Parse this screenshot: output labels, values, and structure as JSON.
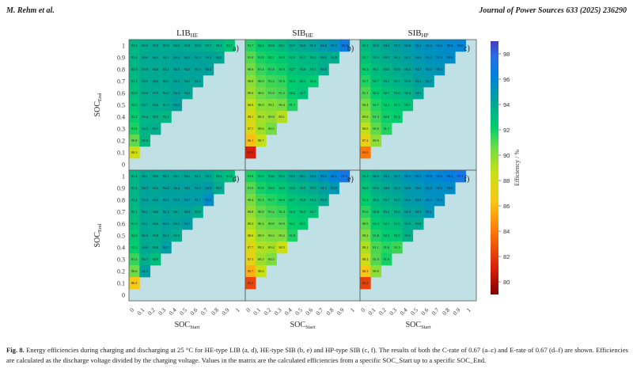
{
  "header": {
    "authors": "M. Rehm et al.",
    "journal": "Journal of Power Sources 633 (2025) 236290"
  },
  "chart_data": {
    "type": "heatmap",
    "xlabel": "SOC_Start",
    "ylabel": "SOC_End",
    "x_ticks": [
      "0",
      "0.1",
      "0.2",
      "0.3",
      "0.4",
      "0.5",
      "0.6",
      "0.7",
      "0.8",
      "0.9",
      "1"
    ],
    "y_ticks": [
      "1",
      "0.9",
      "0.8",
      "0.7",
      "0.6",
      "0.5",
      "0.4",
      "0.3",
      "0.2",
      "0.1",
      "0"
    ],
    "column_titles": [
      "LIB_HE",
      "SIB_HE",
      "SIB_HP"
    ],
    "colorbar": {
      "label": "Efficiency / %",
      "range": [
        79,
        99
      ],
      "ticks": [
        "98",
        "96",
        "94",
        "92",
        "90",
        "88",
        "86",
        "84",
        "82",
        "80"
      ]
    },
    "panels": [
      {
        "id": "a",
        "title": "LIB_HE",
        "label": "a)",
        "rows": [
          [
            "93.3",
            "93.8",
            "93.9",
            "93.9",
            "94.0",
            "93.9",
            "93.9",
            "93.7",
            "93.4",
            "92.7"
          ],
          [
            "93.4",
            "94.0",
            "94.1",
            "94.1",
            "94.3",
            "94.3",
            "94.3",
            "94.3",
            "94.2"
          ],
          [
            "93.3",
            "93.9",
            "94.0",
            "94.1",
            "94.3",
            "94.3",
            "94.3",
            "94.4"
          ],
          [
            "93.1",
            "93.9",
            "94.0",
            "94.0",
            "94.3",
            "94.2",
            "94.3"
          ],
          [
            "92.9",
            "93.8",
            "93.9",
            "94.0",
            "94.3",
            "94.2"
          ],
          [
            "92.6",
            "93.7",
            "93.8",
            "93.9",
            "94.4"
          ],
          [
            "92.2",
            "93.4",
            "93.5",
            "93.3"
          ],
          [
            "91.8",
            "93.5",
            "93.7"
          ],
          [
            "90.8",
            "93.3"
          ],
          [
            "88.3"
          ],
          []
        ]
      },
      {
        "id": "b",
        "title": "SIB_HE",
        "label": "b)",
        "rows": [
          [
            "91.7",
            "92.4",
            "92.8",
            "93.1",
            "93.7",
            "94.0",
            "94.3",
            "94.8",
            "95.3",
            "96.7"
          ],
          [
            "91.0",
            "91.8",
            "92.1",
            "92.4",
            "92.9",
            "93.2",
            "93.4",
            "93.8",
            "93.8"
          ],
          [
            "90.6",
            "91.4",
            "91.8",
            "92.0",
            "92.7",
            "93.0",
            "93.1",
            "93.8"
          ],
          [
            "90.0",
            "90.9",
            "91.3",
            "91.5",
            "92.3",
            "92.5",
            "92.3"
          ],
          [
            "89.6",
            "90.6",
            "91.0",
            "91.2",
            "92.2",
            "92.7"
          ],
          [
            "88.8",
            "90.0",
            "90.1",
            "90.4",
            "91.7"
          ],
          [
            "88.1",
            "89.4",
            "89.8",
            "89.1"
          ],
          [
            "87.7",
            "89.6",
            "90.5"
          ],
          [
            "86.1",
            "88.7"
          ],
          [
            "81.0"
          ],
          []
        ]
      },
      {
        "id": "c",
        "title": "SIB_HP",
        "label": "c)",
        "rows": [
          [
            "93.1",
            "93.8",
            "94.2",
            "94.5",
            "94.8",
            "95.2",
            "95.4",
            "95.6",
            "95.8",
            "96.0"
          ],
          [
            "92.7",
            "93.5",
            "93.9",
            "94.2",
            "94.5",
            "94.9",
            "95.2",
            "95.4",
            "95.6"
          ],
          [
            "92.2",
            "93.1",
            "93.5",
            "93.9",
            "94.2",
            "94.7",
            "95.0",
            "95.2"
          ],
          [
            "91.7",
            "92.7",
            "93.2",
            "93.5",
            "93.9",
            "94.4",
            "94.7"
          ],
          [
            "91.1",
            "92.2",
            "92.7",
            "93.0",
            "93.4",
            "94.1"
          ],
          [
            "90.4",
            "91.7",
            "92.2",
            "92.5",
            "92.7"
          ],
          [
            "89.8",
            "91.3",
            "92.0",
            "92.2"
          ],
          [
            "88.8",
            "90.8",
            "91.7"
          ],
          [
            "87.2",
            "89.9"
          ],
          [
            "84.0"
          ],
          []
        ]
      },
      {
        "id": "d",
        "title": "LIB_HE",
        "label": "d)",
        "rows": [
          [
            "93.4",
            "94.1",
            "94.0",
            "94.2",
            "94.1",
            "94.2",
            "94.1",
            "94.1",
            "93.4",
            "92.9"
          ],
          [
            "93.4",
            "94.3",
            "94.2",
            "94.4",
            "94.4",
            "94.5",
            "94.5",
            "94.8",
            "93.9"
          ],
          [
            "93.4",
            "94.3",
            "94.3",
            "94.5",
            "94.5",
            "94.7",
            "94.7",
            "95.6"
          ],
          [
            "93.1",
            "94.1",
            "94.0",
            "94.3",
            "94.1",
            "94.3",
            "93.9"
          ],
          [
            "92.9",
            "94.1",
            "94.0",
            "94.4",
            "94.3",
            "94.7"
          ],
          [
            "92.5",
            "94.0",
            "93.8",
            "94.2",
            "93.8"
          ],
          [
            "92.2",
            "94.0",
            "93.8",
            "94.7"
          ],
          [
            "91.4",
            "93.7",
            "92.9"
          ],
          [
            "90.6",
            "94.5"
          ],
          [
            "86.5"
          ],
          []
        ]
      },
      {
        "id": "e",
        "title": "SIB_HE",
        "label": "e)",
        "rows": [
          [
            "91.8",
            "92.6",
            "93.0",
            "93.3",
            "94.0",
            "94.3",
            "94.8",
            "95.4",
            "96.1",
            "97.1"
          ],
          [
            "91.0",
            "91.9",
            "92.3",
            "92.5",
            "93.2",
            "93.5",
            "93.9",
            "94.5",
            "95.0"
          ],
          [
            "90.4",
            "91.3",
            "91.7",
            "92.0",
            "92.7",
            "93.0",
            "93.3",
            "93.9"
          ],
          [
            "89.8",
            "90.8",
            "91.2",
            "91.4",
            "92.3",
            "92.5",
            "92.7"
          ],
          [
            "89.3",
            "90.4",
            "90.8",
            "90.9",
            "92.1",
            "92.3"
          ],
          [
            "88.6",
            "89.9",
            "90.2",
            "90.2",
            "91.8"
          ],
          [
            "87.7",
            "89.2",
            "89.4",
            "88.5"
          ],
          [
            "87.3",
            "89.5",
            "90.3"
          ],
          [
            "85.7",
            "88.6"
          ],
          [
            "82.3"
          ],
          []
        ]
      },
      {
        "id": "f",
        "title": "SIB_HP",
        "label": "f)",
        "rows": [
          [
            "93.2",
            "94.0",
            "94.4",
            "94.7",
            "95.2",
            "95.5",
            "95.8",
            "96.0",
            "96.4",
            "97.1"
          ],
          [
            "92.6",
            "93.6",
            "94.0",
            "94.3",
            "94.8",
            "95.0",
            "95.4",
            "95.5",
            "95.6"
          ],
          [
            "92.2",
            "93.2",
            "93.7",
            "94.0",
            "94.6",
            "94.9",
            "95.3",
            "95.4"
          ],
          [
            "91.6",
            "92.8",
            "93.2",
            "93.6",
            "94.3",
            "94.5",
            "95.1"
          ],
          [
            "90.9",
            "92.3",
            "92.7",
            "93.0",
            "93.8",
            "93.9"
          ],
          [
            "90.2",
            "91.8",
            "92.3",
            "92.5",
            "93.6"
          ],
          [
            "89.2",
            "91.1",
            "91.6",
            "91.3"
          ],
          [
            "88.4",
            "91.0",
            "91.9"
          ],
          [
            "86.3",
            "90.0"
          ],
          [
            "82.2"
          ],
          []
        ]
      }
    ]
  },
  "caption": {
    "label": "Fig. 8.",
    "text": "Energy efficiencies during charging and discharging at 25 °C for HE-type LIB (a, d), HE-type SIB (b, e) and HP-type SIB (c, f). The results of both the C-rate of 0.67 (a–c) and E-rate of 0.67 (d–f) are shown. Efficiencies are calculated as the discharge voltage divided by the charging voltage. Values in the matrix are the calculated efficiencies from a specific SOC_Start up to a specific SOC_End."
  }
}
